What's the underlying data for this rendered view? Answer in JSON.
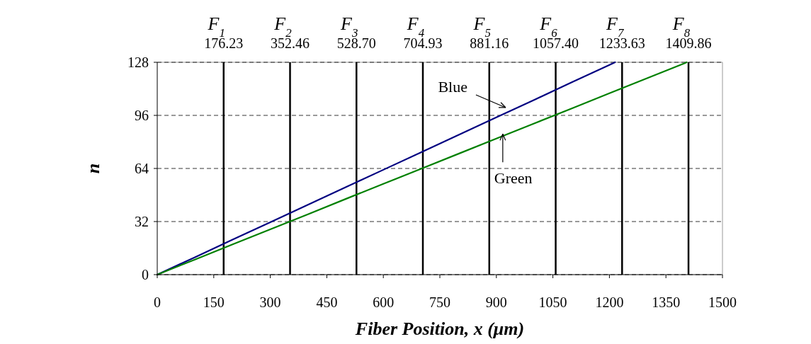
{
  "chart_data": {
    "type": "line",
    "xlabel": "Fiber Position, x (μm)",
    "ylabel": "n",
    "xlim": [
      0,
      1500
    ],
    "xticks": [
      0,
      150,
      300,
      450,
      600,
      750,
      900,
      1050,
      1200,
      1350,
      1500
    ],
    "ylim": [
      0,
      128
    ],
    "yticks": [
      0,
      32,
      64,
      96,
      128
    ],
    "grid": "y",
    "line_style": "solid",
    "marker": "none",
    "series": [
      {
        "color": "#000080",
        "x": [
          0,
          100,
          200,
          300,
          400,
          500,
          600,
          700,
          800,
          900,
          1000,
          1100,
          1200,
          1215
        ],
        "values": [
          0,
          10.5,
          21.1,
          31.6,
          42.1,
          52.7,
          63.2,
          73.7,
          84.3,
          94.8,
          105.3,
          115.9,
          126.4,
          128
        ]
      },
      {
        "color": "#008000",
        "x": [
          0,
          100,
          200,
          300,
          400,
          500,
          600,
          700,
          800,
          900,
          1000,
          1100,
          1200,
          1300,
          1400,
          1405
        ],
        "values": [
          0,
          9.1,
          18.2,
          27.3,
          36.4,
          45.6,
          54.7,
          63.8,
          72.9,
          82.0,
          91.1,
          100.2,
          109.3,
          118.4,
          127.5,
          128
        ]
      }
    ],
    "ref_lines": [
      {
        "axis": "x",
        "value": 176.23,
        "label": "F$_{1}$\n176.23",
        "color": "#000000"
      },
      {
        "axis": "x",
        "value": 352.46,
        "label": "F$_{2}$\n352.46",
        "color": "#000000"
      },
      {
        "axis": "x",
        "value": 528.7,
        "label": "F$_{3}$\n528.70",
        "color": "#000000"
      },
      {
        "axis": "x",
        "value": 704.93,
        "label": "F$_{4}$\n704.93",
        "color": "#000000"
      },
      {
        "axis": "x",
        "value": 881.16,
        "label": "F$_{5}$\n881.16",
        "color": "#000000"
      },
      {
        "axis": "x",
        "value": 1057.4,
        "label": "F$_{6}$\n1057.40",
        "color": "#000000"
      },
      {
        "axis": "x",
        "value": 1233.63,
        "label": "F$_{7}$\n1233.63",
        "color": "#000000"
      },
      {
        "axis": "x",
        "value": 1409.86,
        "label": "F$_{8}$\n1409.86",
        "color": "#000000"
      }
    ],
    "annotations": [
      {
        "text": "Blue",
        "x": 936,
        "y": 99
      },
      {
        "text": "Green",
        "x": 917,
        "y": 84
      }
    ]
  }
}
